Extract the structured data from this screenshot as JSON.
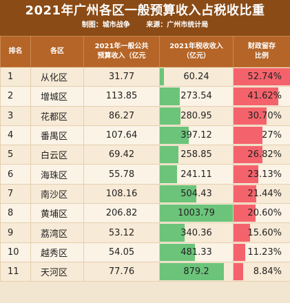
{
  "header": {
    "title": "2021年广州各区一般预算收入占税收比重",
    "producer": "制图：城市战争",
    "source": "来源：广州市统计局"
  },
  "table": {
    "columns": [
      "排名",
      "各区",
      "2021年一般公共\n预算收入（亿元",
      "2021年税收收入\n（亿元）",
      "财政留存\n比例"
    ],
    "rows": [
      {
        "rank": "1",
        "district": "从化区",
        "budget": "31.77",
        "tax": "60.24",
        "share": "52.74%"
      },
      {
        "rank": "2",
        "district": "增城区",
        "budget": "113.85",
        "tax": "273.54",
        "share": "41.62%"
      },
      {
        "rank": "3",
        "district": "花都区",
        "budget": "86.27",
        "tax": "280.95",
        "share": "30.70%"
      },
      {
        "rank": "4",
        "district": "番禺区",
        "budget": "107.64",
        "tax": "397.12",
        "share": "27%"
      },
      {
        "rank": "5",
        "district": "白云区",
        "budget": "69.42",
        "tax": "258.85",
        "share": "26.82%"
      },
      {
        "rank": "6",
        "district": "海珠区",
        "budget": "55.78",
        "tax": "241.11",
        "share": "23.13%"
      },
      {
        "rank": "7",
        "district": "南沙区",
        "budget": "108.16",
        "tax": "504.43",
        "share": "21.44%"
      },
      {
        "rank": "8",
        "district": "黄埔区",
        "budget": "206.82",
        "tax": "1003.79",
        "share": "20.60%"
      },
      {
        "rank": "9",
        "district": "荔湾区",
        "budget": "53.12",
        "tax": "340.36",
        "share": "15.60%"
      },
      {
        "rank": "10",
        "district": "越秀区",
        "budget": "54.05",
        "tax": "481.33",
        "share": "11.23%"
      },
      {
        "rank": "11",
        "district": "天河区",
        "budget": "77.76",
        "tax": "879.2",
        "share": "8.84%"
      }
    ]
  },
  "colors": {
    "header_bg": "#8a4b16",
    "column_header_bg": "#b56527",
    "body_bg": "#f3e6d1",
    "tax_bar": "#6cc47a",
    "share_bar": "#f4636c"
  }
}
